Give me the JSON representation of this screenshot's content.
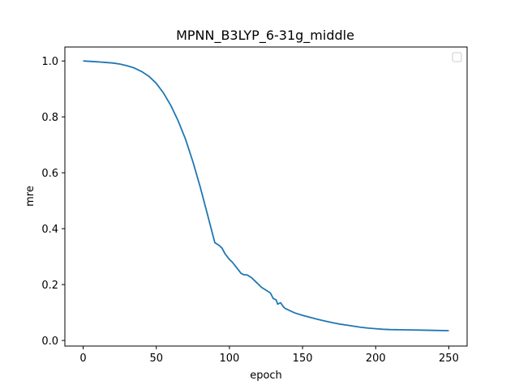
{
  "chart_data": {
    "type": "line",
    "title": "MPNN_B3LYP_6-31g_middle",
    "xlabel": "epoch",
    "ylabel": "mre",
    "xlim": [
      -12.5,
      262.5
    ],
    "ylim": [
      -0.02,
      1.05
    ],
    "xticks": [
      0,
      50,
      100,
      150,
      200,
      250
    ],
    "xtick_labels": [
      "0",
      "50",
      "100",
      "150",
      "200",
      "250"
    ],
    "yticks": [
      0.0,
      0.2,
      0.4,
      0.6,
      0.8,
      1.0
    ],
    "ytick_labels": [
      "0.0",
      "0.2",
      "0.4",
      "0.6",
      "0.8",
      "1.0"
    ],
    "grid": false,
    "legend": {
      "placement": "top-right",
      "entries": []
    },
    "series": [
      {
        "color": "#1f77b4",
        "x": [
          0,
          10,
          20,
          25,
          30,
          35,
          40,
          45,
          50,
          55,
          60,
          65,
          70,
          75,
          80,
          85,
          90,
          93,
          95,
          97,
          100,
          102,
          105,
          108,
          110,
          112,
          115,
          118,
          120,
          122,
          125,
          128,
          130,
          132,
          133,
          135,
          137,
          138,
          140,
          142,
          145,
          150,
          155,
          160,
          165,
          170,
          175,
          180,
          185,
          190,
          195,
          200,
          205,
          210,
          220,
          230,
          240,
          250
        ],
        "y": [
          1.0,
          0.997,
          0.993,
          0.989,
          0.983,
          0.975,
          0.962,
          0.945,
          0.92,
          0.885,
          0.84,
          0.785,
          0.72,
          0.64,
          0.55,
          0.45,
          0.35,
          0.34,
          0.33,
          0.31,
          0.29,
          0.28,
          0.26,
          0.24,
          0.235,
          0.235,
          0.225,
          0.21,
          0.2,
          0.19,
          0.18,
          0.17,
          0.15,
          0.145,
          0.13,
          0.135,
          0.12,
          0.115,
          0.11,
          0.105,
          0.098,
          0.09,
          0.083,
          0.076,
          0.07,
          0.064,
          0.059,
          0.055,
          0.051,
          0.047,
          0.044,
          0.042,
          0.04,
          0.039,
          0.038,
          0.037,
          0.036,
          0.035
        ]
      }
    ]
  }
}
